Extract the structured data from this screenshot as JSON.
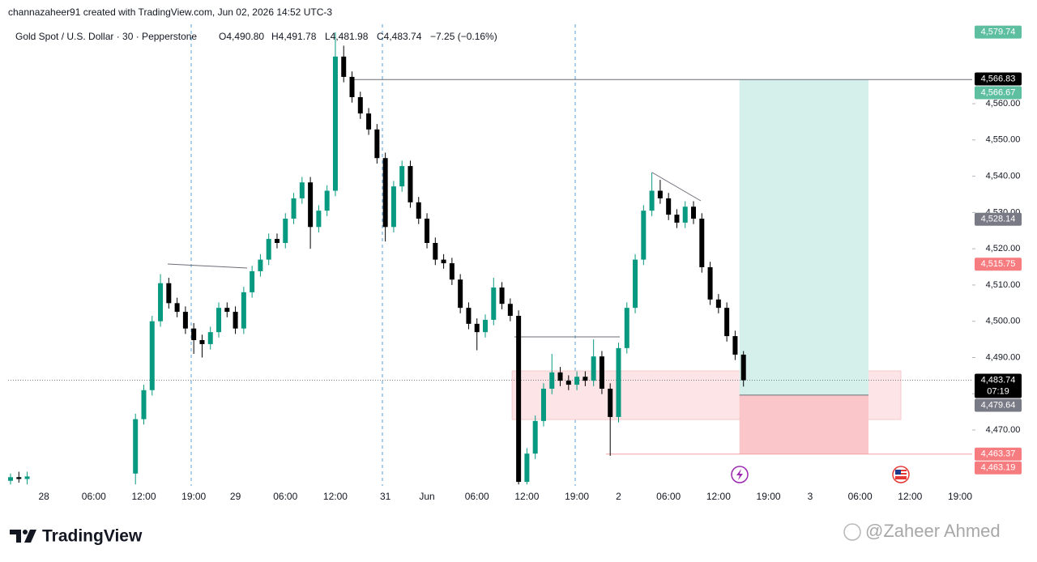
{
  "header": {
    "credit": "channazaheer91 created with TradingView.com, Jun 02, 2026 14:52 UTC-3",
    "symbol": "Gold Spot / U.S. Dollar · 30 · Pepperstone",
    "ohlc": [
      "O4,490.80",
      "H4,491.78",
      "L4,481.98",
      "C4,483.74",
      "−7.25 (−0.16%)"
    ]
  },
  "chart_data": {
    "type": "candlestick",
    "categories": [
      null,
      null,
      null,
      null,
      "28",
      null,
      null,
      null,
      null,
      null,
      "06:00",
      null,
      null,
      null,
      null,
      null,
      "12:00",
      null,
      null,
      null,
      null,
      null,
      "19:00",
      null,
      null,
      null,
      null,
      "29",
      null,
      null,
      null,
      null,
      null,
      "06:00",
      null,
      null,
      null,
      null,
      null,
      "12:00",
      null,
      null,
      null,
      null,
      null,
      "31",
      null,
      null,
      null,
      null,
      "Jun",
      null,
      null,
      null,
      null,
      null,
      "06:00",
      null,
      null,
      null,
      null,
      null,
      "12:00",
      null,
      null,
      null,
      null,
      null,
      "19:00",
      null,
      null,
      null,
      null,
      "2",
      null,
      null,
      null,
      null,
      null,
      "06:00",
      null,
      null,
      null,
      null,
      null,
      "12:00",
      null,
      null,
      null,
      null,
      null,
      "19:00",
      null,
      null,
      null,
      null,
      "3",
      null,
      null,
      null,
      null,
      null,
      "06:00",
      null,
      null,
      null,
      null,
      null,
      "12:00",
      null,
      null,
      null,
      null,
      null,
      "19:00"
    ],
    "open": [
      4456.0,
      4457.0,
      4456.5,
      null,
      null,
      null,
      null,
      null,
      null,
      null,
      null,
      null,
      null,
      null,
      null,
      4458.0,
      4473.0,
      4481.0,
      4500.0,
      4510.5,
      4505.0,
      4502.6,
      4498.0,
      4494.8,
      4493.7,
      4497.0,
      4503.7,
      4502.6,
      4498.0,
      4508.0,
      4513.8,
      4517.0,
      4522.7,
      4521.6,
      4528.3,
      4533.9,
      4538.3,
      4526.0,
      4530.5,
      4536.0,
      4573.0,
      4567.4,
      4561.8,
      4557.3,
      4552.9,
      4545.0,
      4526.0,
      4537.2,
      4542.8,
      4532.8,
      4528.3,
      4521.6,
      4517.0,
      4516.0,
      4511.5,
      4503.7,
      4499.3,
      4497.0,
      4500.4,
      4509.3,
      4504.8,
      4501.5,
      4455.7,
      4463.5,
      4472.5,
      4481.4,
      4485.9,
      4483.6,
      4482.5,
      4484.7,
      4483.6,
      4490.3,
      4481.4,
      4473.6,
      4492.6,
      4503.7,
      4517.0,
      4530.5,
      4536.0,
      4533.9,
      4529.4,
      4527.2,
      4531.6,
      4528.3,
      4514.9,
      4506.0,
      4503.7,
      4495.9,
      4490.8,
      null,
      null,
      null,
      null,
      null,
      null,
      null,
      null,
      null,
      null,
      null,
      null,
      null,
      null,
      null,
      null,
      null,
      null,
      null,
      null,
      null,
      null,
      null,
      null,
      null,
      null
    ],
    "high": [
      4458.0,
      4458.5,
      4458.5,
      null,
      null,
      null,
      null,
      null,
      null,
      null,
      null,
      null,
      null,
      null,
      null,
      4474.5,
      4482.5,
      4501.5,
      4513.0,
      4512.0,
      4506.5,
      4504.1,
      4499.5,
      4496.3,
      4498.5,
      4505.2,
      4505.2,
      4504.1,
      4509.5,
      4515.3,
      4518.5,
      4524.2,
      4524.2,
      4529.8,
      4535.4,
      4539.8,
      4539.8,
      4532.0,
      4537.5,
      4579.7,
      4576.0,
      4568.9,
      4563.3,
      4558.8,
      4554.4,
      4546.5,
      4538.7,
      4544.3,
      4544.3,
      4534.3,
      4529.8,
      4523.1,
      4518.5,
      4517.5,
      4513.0,
      4505.2,
      4500.8,
      4501.9,
      4512.0,
      4510.8,
      4506.3,
      4503.0,
      4465.0,
      4474.0,
      4482.9,
      4491.0,
      4487.4,
      4485.1,
      4486.2,
      4486.2,
      4495.0,
      4491.8,
      4482.9,
      4494.1,
      4505.2,
      4518.5,
      4532.0,
      4541.0,
      4539.0,
      4535.4,
      4530.9,
      4533.1,
      4533.1,
      4529.8,
      4516.4,
      4507.5,
      4505.2,
      4497.4,
      4491.78,
      null,
      null,
      null,
      null,
      null,
      null,
      null,
      null,
      null,
      null,
      null,
      null,
      null,
      null,
      null,
      null,
      null,
      null,
      null,
      null,
      null,
      null,
      null,
      null,
      null,
      null
    ],
    "low": [
      4455.0,
      4455.5,
      4455.0,
      null,
      null,
      null,
      null,
      null,
      null,
      null,
      null,
      null,
      null,
      null,
      null,
      4455.0,
      4471.5,
      4479.5,
      4498.5,
      4503.5,
      4501.1,
      4496.5,
      4491.0,
      4490.0,
      4492.2,
      4495.5,
      4501.1,
      4496.5,
      4496.5,
      4506.5,
      4512.3,
      4515.5,
      4520.1,
      4520.1,
      4526.8,
      4532.4,
      4520.0,
      4524.5,
      4529.0,
      4534.5,
      4565.9,
      4560.3,
      4555.8,
      4551.4,
      4543.5,
      4522.0,
      4524.5,
      4535.7,
      4531.3,
      4526.8,
      4520.1,
      4515.5,
      4514.5,
      4510.0,
      4502.2,
      4497.8,
      4492.0,
      4495.5,
      4498.9,
      4503.3,
      4500.0,
      4455.0,
      4455.0,
      4462.0,
      4471.0,
      4479.9,
      4482.1,
      4481.0,
      4481.0,
      4482.1,
      4482.1,
      4479.9,
      4462.9,
      4472.1,
      4491.1,
      4502.2,
      4515.5,
      4529.0,
      4532.4,
      4527.9,
      4525.7,
      4525.7,
      4526.8,
      4513.4,
      4504.5,
      4502.2,
      4494.4,
      4489.3,
      4481.98,
      null,
      null,
      null,
      null,
      null,
      null,
      null,
      null,
      null,
      null,
      null,
      null,
      null,
      null,
      null,
      null,
      null,
      null,
      null,
      null,
      null,
      null,
      null,
      null,
      null,
      null
    ],
    "close": [
      4457.0,
      4456.5,
      4457.2,
      null,
      null,
      null,
      null,
      null,
      null,
      null,
      null,
      null,
      null,
      null,
      null,
      4473.0,
      4481.0,
      4500.0,
      4510.5,
      4505.0,
      4502.6,
      4498.0,
      4494.8,
      4493.7,
      4497.0,
      4503.7,
      4502.6,
      4498.0,
      4508.0,
      4513.8,
      4517.0,
      4522.7,
      4521.6,
      4528.3,
      4533.9,
      4538.3,
      4526.0,
      4530.5,
      4536.0,
      4573.0,
      4567.4,
      4561.8,
      4557.3,
      4552.9,
      4545.0,
      4526.0,
      4537.2,
      4542.8,
      4532.8,
      4528.3,
      4521.6,
      4517.0,
      4516.0,
      4511.5,
      4503.7,
      4499.3,
      4497.0,
      4500.4,
      4509.3,
      4504.8,
      4501.5,
      4455.7,
      4463.5,
      4472.5,
      4481.4,
      4485.9,
      4483.6,
      4482.5,
      4484.7,
      4483.6,
      4490.3,
      4481.4,
      4473.6,
      4492.6,
      4503.7,
      4517.0,
      4530.5,
      4536.0,
      4533.9,
      4529.4,
      4527.2,
      4531.6,
      4528.3,
      4514.9,
      4506.0,
      4503.7,
      4495.9,
      4490.8,
      4483.74,
      null,
      null,
      null,
      null,
      null,
      null,
      null,
      null,
      null,
      null,
      null,
      null,
      null,
      null,
      null,
      null,
      null,
      null,
      null,
      null,
      null,
      null,
      null,
      null,
      null,
      null
    ],
    "up_color": "#089981",
    "down_color": "#000000",
    "ylim": [
      4454.6,
      4581.9
    ],
    "yticks": [
      {
        "value": 4470,
        "label": "4,470.00"
      },
      {
        "value": 4480,
        "label": "4,480.00"
      },
      {
        "value": 4490,
        "label": "4,490.00"
      },
      {
        "value": 4500,
        "label": "4,500.00"
      },
      {
        "value": 4510,
        "label": "4,510.00"
      },
      {
        "value": 4520,
        "label": "4,520.00"
      },
      {
        "value": 4530,
        "label": "4,530.00"
      },
      {
        "value": 4540,
        "label": "4,540.00"
      },
      {
        "value": 4550,
        "label": "4,550.00"
      },
      {
        "value": 4560,
        "label": "4,560.00"
      }
    ],
    "grid": false,
    "price_labels": [
      {
        "value": 4579.74,
        "label": "4,579.74",
        "color": "#5dbf9f"
      },
      {
        "value": 4566.83,
        "label": "4,566.83",
        "color": "#000000"
      },
      {
        "value": 4566.67,
        "label": "4,566.67",
        "color": "#5dbf9f"
      },
      {
        "value": 4528.14,
        "label": "4,528.14",
        "color": "#787b86"
      },
      {
        "value": 4515.75,
        "label": "4,515.75",
        "color": "#f77c80"
      },
      {
        "value": 4483.74,
        "label": "4,483.74",
        "color": "#000000",
        "countdown": "07:19"
      },
      {
        "value": 4479.64,
        "label": "4,479.64",
        "color": "#787b86"
      },
      {
        "value": 4463.37,
        "label": "4,463.37",
        "color": "#f77c80"
      },
      {
        "value": 4463.19,
        "label": "4,463.19",
        "color": "#f77c80"
      }
    ],
    "zone": {
      "low": 4472.9,
      "high": 4486.3,
      "color": "#fde4e6"
    },
    "target_color": "#d5f0ea",
    "stop_color": "#fbc6c9"
  },
  "footer": {
    "brand": "TradingView",
    "watermark": "@Zaheer Ahmed"
  }
}
